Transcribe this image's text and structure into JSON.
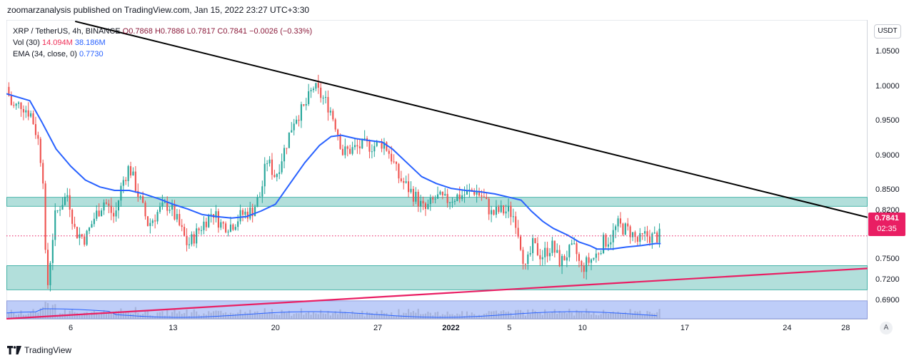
{
  "header": {
    "publisher": "zoomarzanalysis published on TradingView.com, Jan 15, 2022 23:27 UTC+3:30"
  },
  "legend": {
    "symbol": "XRP / TetherUS, 4h, BINANCE",
    "open": "O0.7868",
    "high": "H0.7886",
    "low": "L0.7817",
    "close": "C0.7841",
    "change": "−0.0026 (−0.33%)",
    "vol_label": "Vol (30)",
    "vol_value_1": "14.094M",
    "vol_value_2": "38.186M",
    "ema_label": "EMA (34, close, 0)",
    "ema_value": "0.7730"
  },
  "currency_button": "USDT",
  "price_tag": {
    "price": "0.7841",
    "countdown": "02:35"
  },
  "footer": {
    "brand": "TradingView"
  },
  "auto_button": "A",
  "colors": {
    "up": "#26a69a",
    "down": "#ef5350",
    "ema": "#2962ff",
    "zone_fill": "#b2dfdb",
    "zone_border": "#26a69a",
    "volume_zone": "#bbcaf8",
    "resistance_line": "#000000",
    "support_line": "#e91e63",
    "price_tag": "#e91e63"
  },
  "chart_data": {
    "type": "candlestick",
    "title": "XRP / TetherUS, 4h, BINANCE",
    "ylim": [
      0.664,
      1.097
    ],
    "y_ticks": [
      "1.0500",
      "1.0000",
      "0.9500",
      "0.9000",
      "0.8500",
      "0.8200",
      "0.7500",
      "0.7200",
      "0.6900"
    ],
    "y_tick_values": [
      1.05,
      1.0,
      0.95,
      0.9,
      0.85,
      0.82,
      0.75,
      0.72,
      0.69
    ],
    "x_ticks": [
      "6",
      "13",
      "20",
      "27",
      "2022",
      "5",
      "10",
      "17",
      "24",
      "28"
    ],
    "x_tick_days": [
      6,
      13,
      20,
      27,
      32,
      36,
      41,
      48,
      55,
      59
    ],
    "day_range": [
      1.6,
      60.5
    ],
    "last_candle_day": 46.35,
    "current_price": 0.7841,
    "zones": [
      {
        "name": "upper-resistance-zone",
        "top": 0.84,
        "bottom": 0.827
      },
      {
        "name": "lower-support-zone",
        "top": 0.741,
        "bottom": 0.706
      },
      {
        "name": "bottom-zone",
        "top": 0.69,
        "bottom": 0.664
      }
    ],
    "trendlines": [
      {
        "name": "descending-resistance",
        "from_day": 6.3,
        "from_price": 1.095,
        "to_day": 60.5,
        "to_price": 0.811
      },
      {
        "name": "ascending-support",
        "from_day": 1.6,
        "from_price": 0.664,
        "to_day": 60.5,
        "to_price": 0.737
      }
    ],
    "path_points": [
      [
        1.6,
        1.0
      ],
      [
        2.0,
        0.97
      ],
      [
        2.6,
        0.975
      ],
      [
        3.3,
        0.96
      ],
      [
        3.8,
        0.92
      ],
      [
        4.1,
        0.87
      ],
      [
        4.35,
        0.696
      ],
      [
        4.6,
        0.75
      ],
      [
        4.9,
        0.81
      ],
      [
        5.3,
        0.83
      ],
      [
        5.8,
        0.845
      ],
      [
        6.3,
        0.79
      ],
      [
        7.0,
        0.78
      ],
      [
        7.6,
        0.81
      ],
      [
        8.3,
        0.835
      ],
      [
        9.0,
        0.81
      ],
      [
        9.5,
        0.86
      ],
      [
        10.0,
        0.885
      ],
      [
        10.6,
        0.845
      ],
      [
        11.3,
        0.8
      ],
      [
        12.0,
        0.82
      ],
      [
        12.7,
        0.83
      ],
      [
        13.4,
        0.8
      ],
      [
        14.0,
        0.77
      ],
      [
        15.0,
        0.8
      ],
      [
        15.7,
        0.82
      ],
      [
        16.3,
        0.8
      ],
      [
        17.0,
        0.8
      ],
      [
        17.7,
        0.815
      ],
      [
        18.4,
        0.82
      ],
      [
        19.0,
        0.845
      ],
      [
        19.4,
        0.895
      ],
      [
        20.0,
        0.87
      ],
      [
        20.7,
        0.915
      ],
      [
        21.3,
        0.955
      ],
      [
        22.0,
        0.97
      ],
      [
        22.6,
        1.0
      ],
      [
        23.2,
        0.985
      ],
      [
        23.7,
        0.97
      ],
      [
        24.2,
        0.94
      ],
      [
        24.6,
        0.905
      ],
      [
        25.3,
        0.91
      ],
      [
        26.0,
        0.915
      ],
      [
        26.8,
        0.915
      ],
      [
        27.4,
        0.92
      ],
      [
        27.9,
        0.9
      ],
      [
        28.4,
        0.87
      ],
      [
        29.0,
        0.855
      ],
      [
        29.6,
        0.84
      ],
      [
        30.2,
        0.82
      ],
      [
        31.0,
        0.84
      ],
      [
        31.6,
        0.835
      ],
      [
        32.2,
        0.84
      ],
      [
        33.0,
        0.845
      ],
      [
        33.6,
        0.85
      ],
      [
        34.2,
        0.84
      ],
      [
        34.8,
        0.815
      ],
      [
        35.3,
        0.82
      ],
      [
        36.0,
        0.82
      ],
      [
        36.4,
        0.81
      ],
      [
        36.8,
        0.77
      ],
      [
        37.1,
        0.735
      ],
      [
        37.6,
        0.77
      ],
      [
        38.2,
        0.755
      ],
      [
        38.9,
        0.77
      ],
      [
        39.5,
        0.745
      ],
      [
        40.0,
        0.76
      ],
      [
        40.5,
        0.765
      ],
      [
        40.9,
        0.735
      ],
      [
        41.3,
        0.745
      ],
      [
        41.9,
        0.755
      ],
      [
        42.4,
        0.775
      ],
      [
        42.9,
        0.78
      ],
      [
        43.4,
        0.8
      ],
      [
        43.8,
        0.795
      ],
      [
        44.3,
        0.79
      ],
      [
        44.8,
        0.775
      ],
      [
        45.3,
        0.785
      ],
      [
        45.8,
        0.782
      ],
      [
        46.35,
        0.7841
      ]
    ],
    "ema_path": [
      [
        1.6,
        0.99
      ],
      [
        3.2,
        0.98
      ],
      [
        4.0,
        0.95
      ],
      [
        5.0,
        0.91
      ],
      [
        6.0,
        0.885
      ],
      [
        7.0,
        0.865
      ],
      [
        8.0,
        0.855
      ],
      [
        9.0,
        0.85
      ],
      [
        10.0,
        0.85
      ],
      [
        11.0,
        0.845
      ],
      [
        12.0,
        0.838
      ],
      [
        13.0,
        0.83
      ],
      [
        14.0,
        0.823
      ],
      [
        15.0,
        0.815
      ],
      [
        16.0,
        0.812
      ],
      [
        17.0,
        0.81
      ],
      [
        18.0,
        0.812
      ],
      [
        19.0,
        0.82
      ],
      [
        20.0,
        0.83
      ],
      [
        21.0,
        0.86
      ],
      [
        22.0,
        0.89
      ],
      [
        23.0,
        0.915
      ],
      [
        23.8,
        0.928
      ],
      [
        24.5,
        0.93
      ],
      [
        25.5,
        0.925
      ],
      [
        26.5,
        0.922
      ],
      [
        27.3,
        0.92
      ],
      [
        28.0,
        0.91
      ],
      [
        29.0,
        0.89
      ],
      [
        30.0,
        0.87
      ],
      [
        31.0,
        0.86
      ],
      [
        32.0,
        0.853
      ],
      [
        33.0,
        0.85
      ],
      [
        34.0,
        0.848
      ],
      [
        35.0,
        0.845
      ],
      [
        36.0,
        0.84
      ],
      [
        36.8,
        0.836
      ],
      [
        37.5,
        0.82
      ],
      [
        38.3,
        0.805
      ],
      [
        39.0,
        0.795
      ],
      [
        40.0,
        0.785
      ],
      [
        40.8,
        0.775
      ],
      [
        41.5,
        0.77
      ],
      [
        42.0,
        0.765
      ],
      [
        43.0,
        0.765
      ],
      [
        44.0,
        0.768
      ],
      [
        45.0,
        0.77
      ],
      [
        46.0,
        0.773
      ],
      [
        46.35,
        0.773
      ]
    ]
  }
}
